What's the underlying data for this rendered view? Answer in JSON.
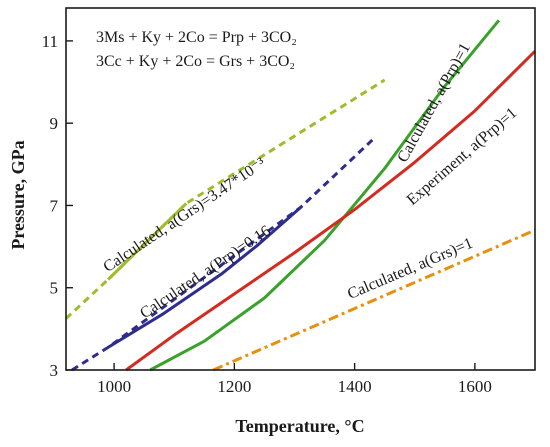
{
  "chart_data": {
    "type": "line",
    "xlabel": "Temperature, °C",
    "ylabel": "Pressure, GPa",
    "xlim": [
      920,
      1700
    ],
    "ylim": [
      3,
      11.8
    ],
    "xticks": [
      1000,
      1200,
      1400,
      1600
    ],
    "yticks": [
      3,
      5,
      7,
      9,
      11
    ],
    "xtick_labels": [
      "1000",
      "1200",
      "1400",
      "1600"
    ],
    "ytick_labels": [
      "3",
      "5",
      "7",
      "9",
      "11"
    ],
    "grid": false,
    "equations": [
      "3Ms + Ky + 2Co = Prp + 3CO₂",
      "3Cc + Ky + 2Co = Grs + 3CO₂"
    ],
    "series": [
      {
        "name": "Calculated, a(Prp)=1",
        "color": "#3aa12b",
        "style": "solid",
        "x": [
          1060,
          1150,
          1250,
          1350,
          1450,
          1550,
          1640
        ],
        "y": [
          3.0,
          3.7,
          4.75,
          6.15,
          7.9,
          9.9,
          11.5
        ]
      },
      {
        "name": "Experiment, a(Prp)=1",
        "color": "#d42a1f",
        "style": "solid",
        "x": [
          1020,
          1100,
          1200,
          1300,
          1400,
          1500,
          1600,
          1700
        ],
        "y": [
          3.0,
          3.85,
          4.85,
          5.85,
          6.9,
          8.05,
          9.3,
          10.75
        ]
      },
      {
        "name": "Calculated, a(Prp)=0.16",
        "color": "#2e2c8f",
        "style": "solid",
        "x": [
          990,
          1080,
          1180,
          1240,
          1310
        ],
        "y": [
          3.55,
          4.35,
          5.35,
          6.05,
          6.95
        ]
      },
      {
        "name": "Calculated, a(Prp)=0.16 (extrapolated)",
        "color": "#2e2c8f",
        "style": "dash",
        "x": [
          930,
          990,
          1310,
          1430
        ],
        "y": [
          3.0,
          3.55,
          6.95,
          8.6
        ]
      },
      {
        "name": "Calculated, a(Grs)=3.47*10⁻³",
        "color": "#9dbd2a",
        "style": "solid",
        "x": [
          990,
          1120
        ],
        "y": [
          5.2,
          7.05
        ]
      },
      {
        "name": "Calculated, a(Grs)=3.47*10⁻³ (extrapolated)",
        "color": "#9dbd2a",
        "style": "dash",
        "x": [
          920,
          990,
          1120,
          1450
        ],
        "y": [
          4.25,
          5.2,
          7.05,
          10.05
        ]
      },
      {
        "name": "Calculated, a(Grs)=1",
        "color": "#e8900c",
        "style": "dashdot",
        "x": [
          1165,
          1700
        ],
        "y": [
          3.0,
          6.4
        ]
      }
    ],
    "annotations": [
      {
        "text": "Calculated, a(Prp)=1",
        "color": "#1a1a1a"
      },
      {
        "text": "Experiment, a(Prp)=1",
        "color": "#1a1a1a"
      },
      {
        "text": "Calculated, a(Prp)=0.16",
        "color": "#1a1a1a"
      },
      {
        "text": "Calculated, a(Grs)=3.47*10⁻³",
        "color": "#1a1a1a"
      },
      {
        "text": "Calculated, a(Grs)=1",
        "color": "#1a1a1a"
      }
    ]
  }
}
